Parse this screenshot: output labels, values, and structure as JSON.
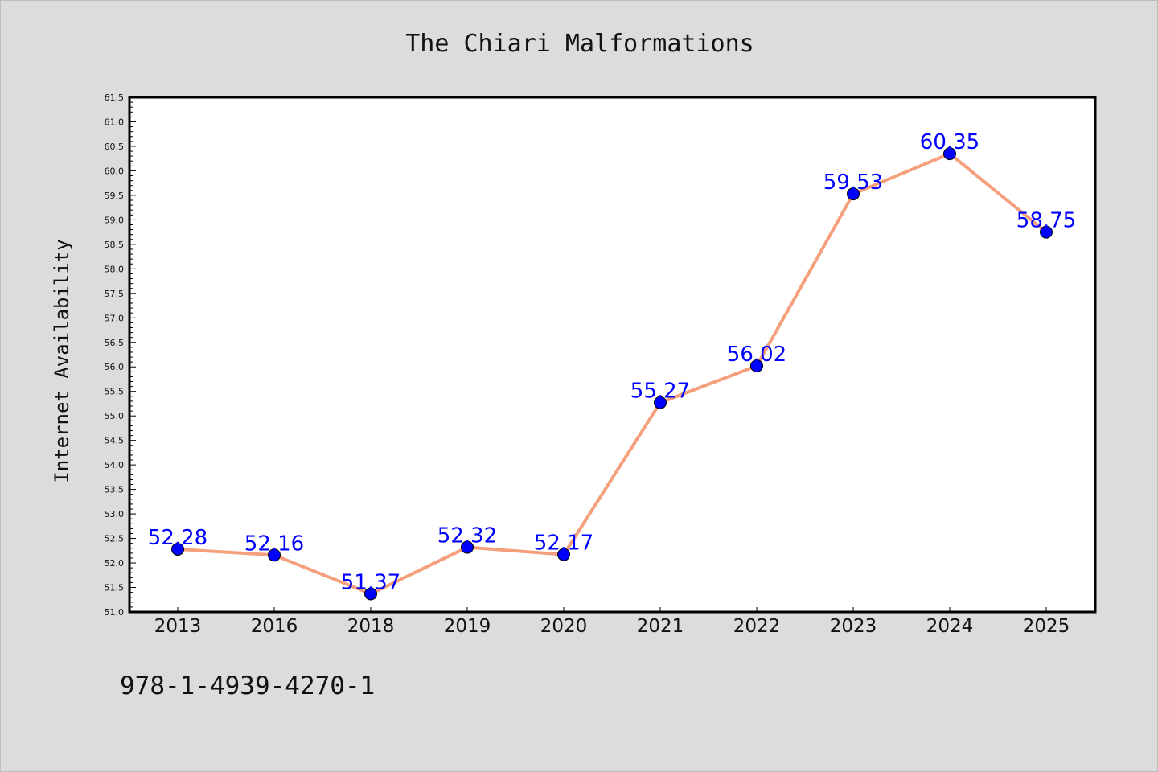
{
  "colors": {
    "background": "#dcdcdc",
    "plot_background": "#ffffff",
    "line": "#f4a07c",
    "marker": "#0000ff",
    "data_label": "#0000ff"
  },
  "isbn_text": "978-1-4939-4270-1",
  "chart_data": {
    "type": "line",
    "title": "The Chiari Malformations",
    "xlabel": "",
    "ylabel": "Internet Availability",
    "categories": [
      "2013",
      "2016",
      "2018",
      "2019",
      "2020",
      "2021",
      "2022",
      "2023",
      "2024",
      "2025"
    ],
    "values": [
      52.28,
      52.16,
      51.37,
      52.32,
      52.17,
      55.27,
      56.02,
      59.53,
      60.35,
      58.75
    ],
    "data_labels": [
      "52.28",
      "52.16",
      "51.37",
      "52.32",
      "52.17",
      "55.27",
      "56.02",
      "59.53",
      "60.35",
      "58.75"
    ],
    "ylim": [
      51.0,
      61.5
    ],
    "yticks": [
      "51.0",
      "51.5",
      "52.0",
      "52.5",
      "53.0",
      "53.5",
      "54.0",
      "54.5",
      "55.0",
      "55.5",
      "56.0",
      "56.5",
      "57.0",
      "57.5",
      "58.0",
      "58.5",
      "59.0",
      "59.5",
      "60.0",
      "60.5",
      "61.0",
      "61.5"
    ],
    "grid": false,
    "legend": "none"
  }
}
